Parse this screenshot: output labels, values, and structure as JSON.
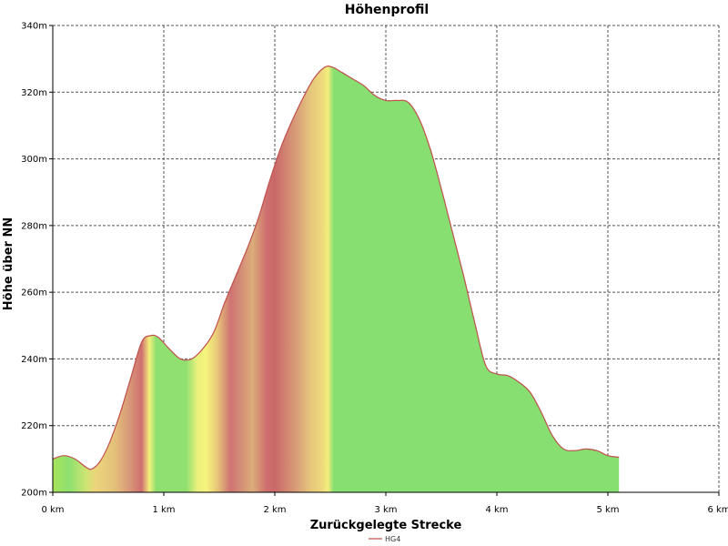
{
  "chart_data": {
    "type": "area",
    "title": "Höhenprofil",
    "xlabel": "Zurückgelegte Strecke",
    "ylabel": "Höhe über NN",
    "xlim": [
      0,
      6
    ],
    "ylim": [
      200,
      340
    ],
    "x_ticks": [
      0,
      1,
      2,
      3,
      4,
      5,
      6
    ],
    "x_tick_labels": [
      "0 km",
      "1 km",
      "2 km",
      "3 km",
      "4 km",
      "5 km",
      "6 km"
    ],
    "y_ticks": [
      200,
      220,
      240,
      260,
      280,
      300,
      320,
      340
    ],
    "y_tick_labels": [
      "200m",
      "220m",
      "240m",
      "260m",
      "280m",
      "300m",
      "320m",
      "340m"
    ],
    "grid": true,
    "legend_position": "bottom-center",
    "series": [
      {
        "name": "HG4",
        "line_color": "#c0504d",
        "x": [
          0,
          0.1,
          0.2,
          0.3,
          0.35,
          0.42,
          0.5,
          0.6,
          0.7,
          0.8,
          0.88,
          0.95,
          1.05,
          1.15,
          1.25,
          1.35,
          1.45,
          1.55,
          1.65,
          1.75,
          1.85,
          1.95,
          2.05,
          2.15,
          2.25,
          2.35,
          2.45,
          2.52,
          2.6,
          2.7,
          2.8,
          2.9,
          3.0,
          3.1,
          3.2,
          3.3,
          3.4,
          3.5,
          3.6,
          3.7,
          3.8,
          3.9,
          4.0,
          4.1,
          4.2,
          4.3,
          4.4,
          4.5,
          4.6,
          4.7,
          4.8,
          4.9,
          5.0,
          5.1
        ],
        "y": [
          210,
          211,
          210,
          207.5,
          207,
          209,
          214,
          223,
          234,
          245,
          247,
          246.5,
          243,
          240,
          240,
          243,
          248,
          257,
          265,
          273,
          282,
          293,
          303,
          311,
          318,
          324,
          327.5,
          327.5,
          326,
          324,
          322,
          319,
          317.5,
          317.5,
          317,
          312,
          303,
          291,
          278,
          265,
          251,
          238,
          235.5,
          235,
          233,
          230,
          224,
          217,
          213,
          212.5,
          213,
          212.5,
          211,
          210.5
        ]
      }
    ],
    "gradient_stops": [
      {
        "x": 0.0,
        "color": "#a8e35c"
      },
      {
        "x": 0.15,
        "color": "#8fe070"
      },
      {
        "x": 0.3,
        "color": "#cde472"
      },
      {
        "x": 0.38,
        "color": "#ecd57c"
      },
      {
        "x": 0.55,
        "color": "#e4c27a"
      },
      {
        "x": 0.7,
        "color": "#d79478"
      },
      {
        "x": 0.8,
        "color": "#cf6f6f"
      },
      {
        "x": 0.87,
        "color": "#f4f07c"
      },
      {
        "x": 0.93,
        "color": "#8fe070"
      },
      {
        "x": 1.2,
        "color": "#8fe070"
      },
      {
        "x": 1.3,
        "color": "#e8f07c"
      },
      {
        "x": 1.38,
        "color": "#f7f47c"
      },
      {
        "x": 1.48,
        "color": "#e7c879"
      },
      {
        "x": 1.6,
        "color": "#cf7373"
      },
      {
        "x": 1.7,
        "color": "#d48f77"
      },
      {
        "x": 1.8,
        "color": "#dcad7a"
      },
      {
        "x": 1.92,
        "color": "#cf7070"
      },
      {
        "x": 2.0,
        "color": "#c96868"
      },
      {
        "x": 2.1,
        "color": "#d28472"
      },
      {
        "x": 2.2,
        "color": "#d99f78"
      },
      {
        "x": 2.32,
        "color": "#e6c67c"
      },
      {
        "x": 2.42,
        "color": "#eed77d"
      },
      {
        "x": 2.48,
        "color": "#f4ee7c"
      },
      {
        "x": 2.53,
        "color": "#86df70"
      },
      {
        "x": 5.1,
        "color": "#86df70"
      }
    ]
  }
}
